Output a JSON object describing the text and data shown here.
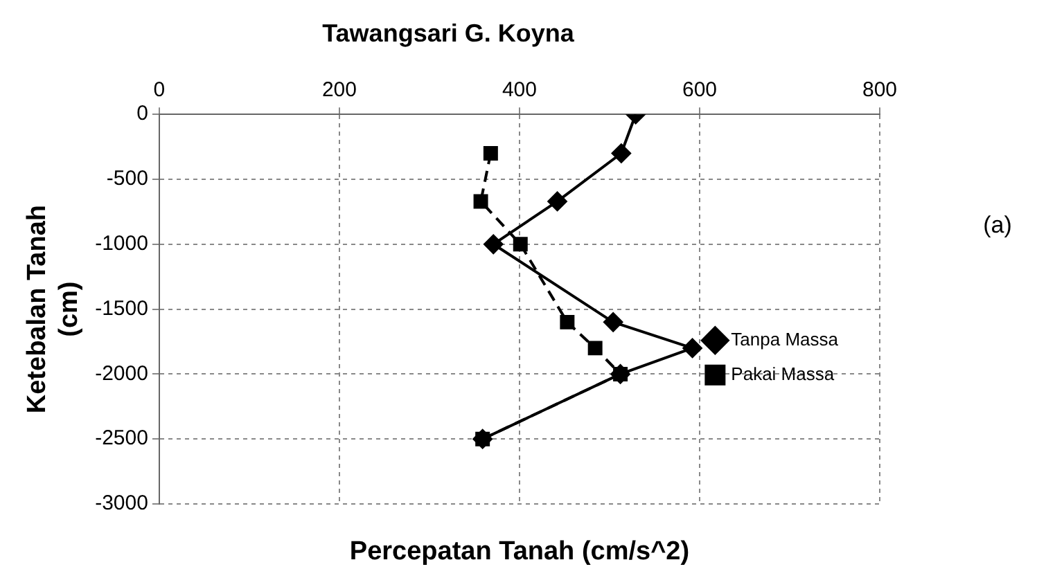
{
  "chart_data": {
    "type": "line",
    "title": "Tawangsari G. Koyna",
    "xlabel": "Percepatan Tanah (cm/s^2)",
    "ylabel": "Ketebalan Tanah (cm)",
    "annotations": [
      "(a)"
    ],
    "xlim": [
      0,
      800
    ],
    "xticks": [
      0,
      200,
      400,
      600,
      800
    ],
    "ylim": [
      -3000,
      0
    ],
    "yticks": [
      -3000,
      -2500,
      -2000,
      -1500,
      -1000,
      -500,
      0
    ],
    "grid": true,
    "legend": "bottom right",
    "series": [
      {
        "name": "Tanpa Massa",
        "color": "#000000",
        "marker": "diamond",
        "line_style": "solid",
        "x": [
          529,
          513,
          442,
          371,
          504,
          592,
          512,
          359
        ],
        "values": [
          0,
          -300,
          -670,
          -1000,
          -1600,
          -1800,
          -2000,
          -2500
        ]
      },
      {
        "name": "Pakai Massa",
        "color": "#000000",
        "marker": "square",
        "line_style": "dashed",
        "x": [
          368,
          357,
          401,
          453,
          484,
          512,
          359
        ],
        "values": [
          -300,
          -670,
          -1000,
          -1600,
          -1800,
          -2000,
          -2500
        ]
      }
    ]
  }
}
